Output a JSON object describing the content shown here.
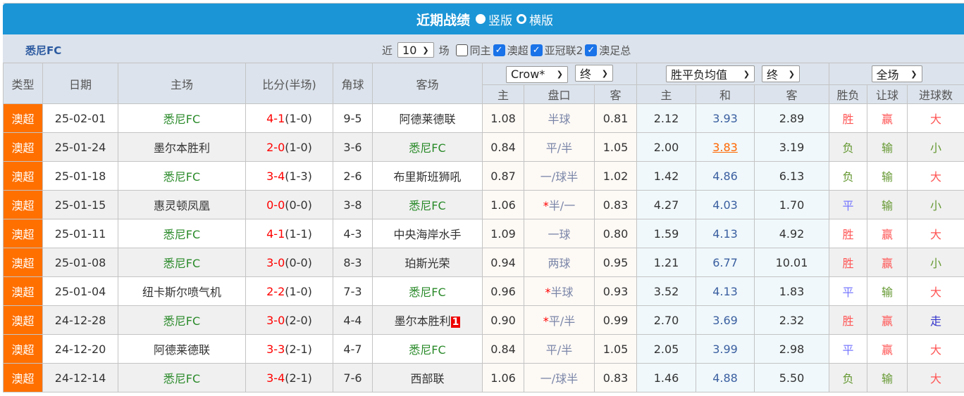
{
  "title": {
    "text": "近期战绩",
    "opt1": "竖版",
    "opt2": "横版"
  },
  "team": "悉尼FC",
  "filters": {
    "near": "近",
    "count": "10",
    "unit": "场",
    "same_home": "同主",
    "c1": "澳超",
    "c2": "亚冠联2",
    "c3": "澳足总"
  },
  "selects": {
    "company": "Crow*",
    "asian_time": "终",
    "euro_type": "胜平负均值",
    "euro_time": "终",
    "period": "全场"
  },
  "headers": {
    "type": "类型",
    "date": "日期",
    "home": "主场",
    "score": "比分(半场)",
    "corner": "角球",
    "away": "客场",
    "a_home": "主",
    "a_line": "盘口",
    "a_away": "客",
    "e_home": "主",
    "e_draw": "和",
    "e_away": "客",
    "r1": "胜负",
    "r2": "让球",
    "r3": "进球数"
  },
  "rows": [
    {
      "type": "澳超",
      "date": "25-02-01",
      "home": "悉尼FC",
      "ft": "4-1",
      "ht": "(1-0)",
      "corner": "9-5",
      "away": "阿德莱德联",
      "ah": "1.08",
      "line": "半球",
      "aa": "0.81",
      "eh": "2.12",
      "ed": "3.93",
      "ea": "2.89",
      "r1": "胜",
      "r2": "赢",
      "r3": "大"
    },
    {
      "type": "澳超",
      "date": "25-01-24",
      "home": "墨尔本胜利",
      "ft": "2-0",
      "ht": "(1-0)",
      "corner": "3-6",
      "away": "悉尼FC",
      "ah": "0.84",
      "line": "平/半",
      "aa": "1.05",
      "eh": "2.00",
      "ed": "3.83",
      "ed_highlight": true,
      "ea": "3.19",
      "r1": "负",
      "r2": "输",
      "r3": "小"
    },
    {
      "type": "澳超",
      "date": "25-01-18",
      "home": "悉尼FC",
      "ft": "3-4",
      "ht": "(1-3)",
      "corner": "2-6",
      "away": "布里斯班狮吼",
      "ah": "0.87",
      "line": "一/球半",
      "aa": "1.02",
      "eh": "1.42",
      "ed": "4.86",
      "ea": "6.13",
      "r1": "负",
      "r2": "输",
      "r3": "大"
    },
    {
      "type": "澳超",
      "date": "25-01-15",
      "home": "惠灵顿凤凰",
      "ft": "0-0",
      "ht": "(0-0)",
      "corner": "3-8",
      "away": "悉尼FC",
      "ah": "1.06",
      "star": true,
      "line": "半/一",
      "aa": "0.83",
      "eh": "4.27",
      "ed": "4.03",
      "ea": "1.70",
      "r1": "平",
      "r2": "输",
      "r3": "小"
    },
    {
      "type": "澳超",
      "date": "25-01-11",
      "home": "悉尼FC",
      "ft": "4-1",
      "ht": "(1-1)",
      "corner": "4-3",
      "away": "中央海岸水手",
      "ah": "1.09",
      "line": "一球",
      "aa": "0.80",
      "eh": "1.59",
      "ed": "4.13",
      "ea": "4.92",
      "r1": "胜",
      "r2": "赢",
      "r3": "大"
    },
    {
      "type": "澳超",
      "date": "25-01-08",
      "home": "悉尼FC",
      "ft": "3-0",
      "ht": "(0-0)",
      "corner": "8-3",
      "away": "珀斯光荣",
      "ah": "0.94",
      "line": "两球",
      "aa": "0.95",
      "eh": "1.21",
      "ed": "6.77",
      "ea": "10.01",
      "r1": "胜",
      "r2": "赢",
      "r3": "小"
    },
    {
      "type": "澳超",
      "date": "25-01-04",
      "home": "纽卡斯尔喷气机",
      "ft": "2-2",
      "ht": "(1-0)",
      "corner": "7-3",
      "away": "悉尼FC",
      "ah": "0.96",
      "star": true,
      "line": "半球",
      "aa": "0.93",
      "eh": "3.52",
      "ed": "4.13",
      "ea": "1.83",
      "r1": "平",
      "r2": "输",
      "r3": "大"
    },
    {
      "type": "澳超",
      "date": "24-12-28",
      "home": "悉尼FC",
      "ft": "3-0",
      "ht": "(2-0)",
      "corner": "4-4",
      "away": "墨尔本胜利",
      "away_rank": "1",
      "ah": "0.90",
      "star": true,
      "line": "平/半",
      "aa": "0.99",
      "eh": "2.70",
      "ed": "3.69",
      "ea": "2.32",
      "r1": "胜",
      "r2": "赢",
      "r3": "走"
    },
    {
      "type": "澳超",
      "date": "24-12-20",
      "home": "阿德莱德联",
      "ft": "3-3",
      "ht": "(2-1)",
      "corner": "4-7",
      "away": "悉尼FC",
      "ah": "0.84",
      "line": "平/半",
      "aa": "1.05",
      "eh": "2.05",
      "ed": "3.99",
      "ea": "2.98",
      "r1": "平",
      "r2": "赢",
      "r3": "大"
    },
    {
      "type": "澳超",
      "date": "24-12-14",
      "home": "悉尼FC",
      "ft": "3-4",
      "ht": "(2-1)",
      "corner": "7-6",
      "away": "西部联",
      "ah": "1.06",
      "line": "一/球半",
      "aa": "0.83",
      "eh": "1.46",
      "ed": "4.88",
      "ea": "5.50",
      "r1": "负",
      "r2": "输",
      "r3": "大"
    }
  ],
  "colors": {
    "header_blue": "#1b95d6",
    "type_orange": "#ff7000",
    "win": "#ff5555",
    "lose": "#669933",
    "draw": "#7777ff"
  }
}
